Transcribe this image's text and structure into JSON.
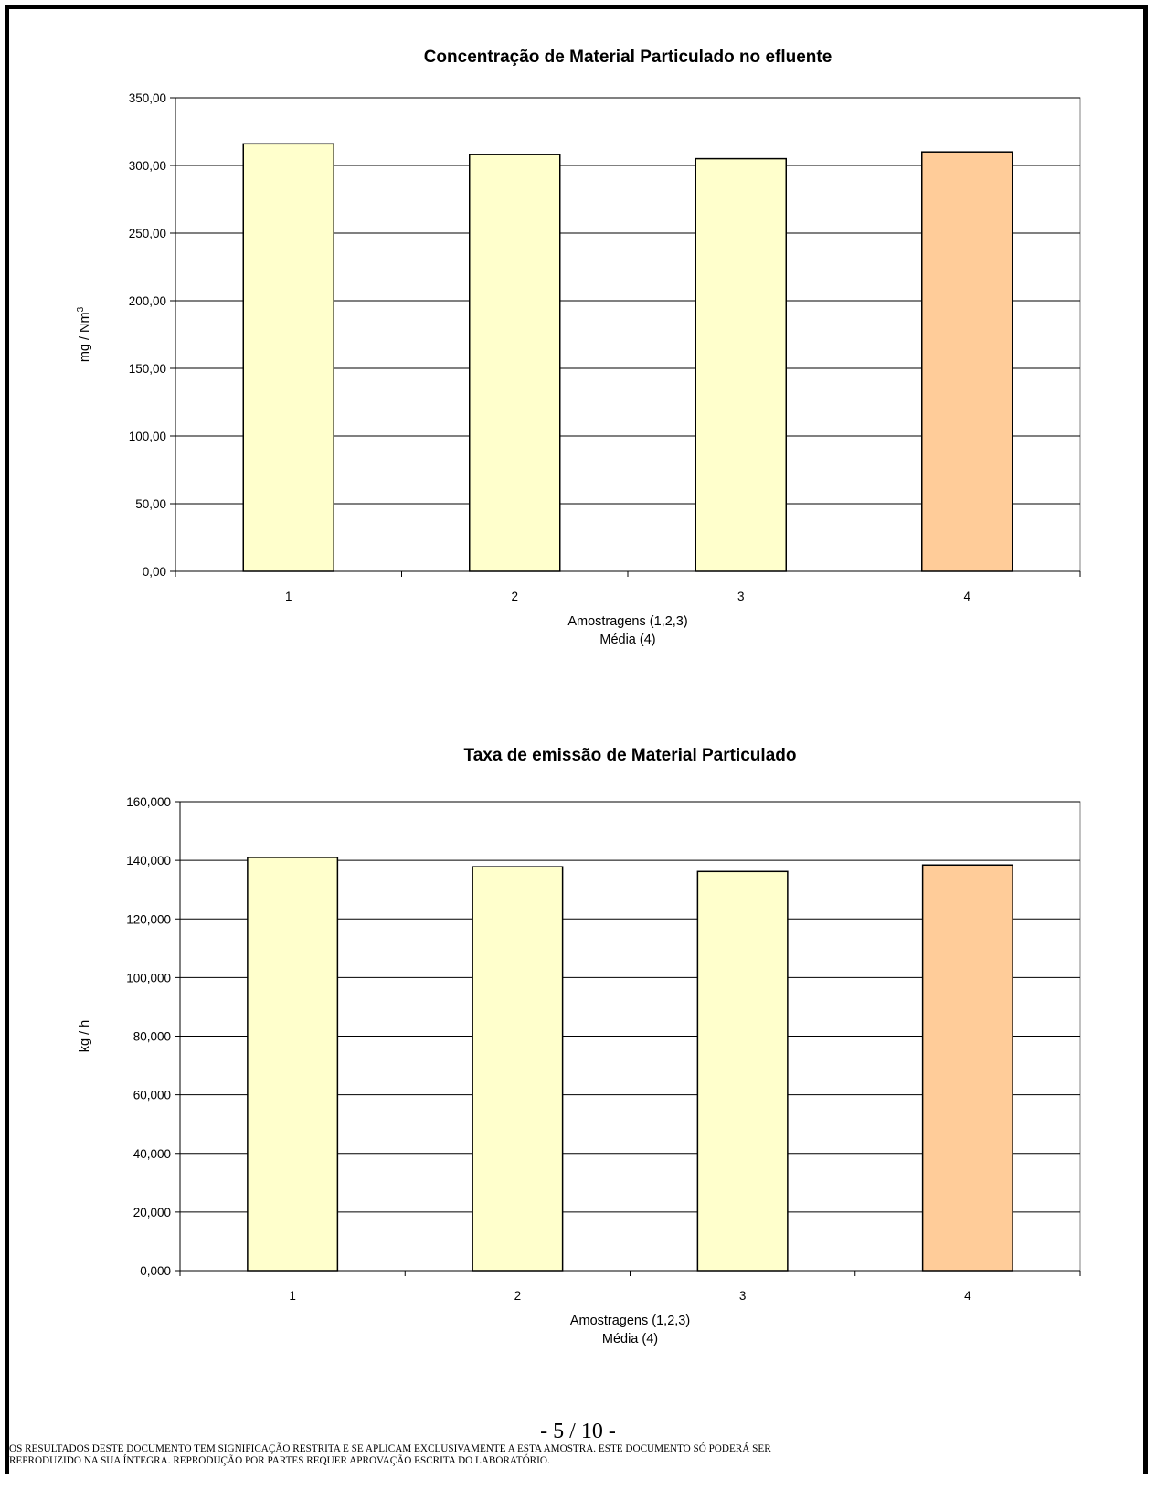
{
  "chart_data": [
    {
      "type": "bar",
      "title": "Concentração de Material Particulado no efluente",
      "categories": [
        "1",
        "2",
        "3",
        "4"
      ],
      "values": [
        316,
        308,
        305,
        310
      ],
      "highlight_index": 3,
      "ylabel": "mg / Nm",
      "ylabel_sup": "3",
      "xlabel": [
        "Amostragens (1,2,3)",
        "Média (4)"
      ],
      "ylim": [
        0,
        350
      ],
      "ytick_step": 50,
      "ytick_labels": [
        "0,00",
        "50,00",
        "100,00",
        "150,00",
        "200,00",
        "250,00",
        "300,00",
        "350,00"
      ],
      "grid": true,
      "legend": "none",
      "colors": {
        "bar": "#FFFFCC",
        "highlight": "#FFCC99",
        "outline": "#000000",
        "grid": "#000000"
      }
    },
    {
      "type": "bar",
      "title": "Taxa de emissão de Material Particulado",
      "categories": [
        "1",
        "2",
        "3",
        "4"
      ],
      "values": [
        141,
        137.8,
        136.2,
        138.4
      ],
      "highlight_index": 3,
      "ylabel": "kg / h",
      "ylabel_sup": "",
      "xlabel": [
        "Amostragens (1,2,3)",
        "Média (4)"
      ],
      "ylim": [
        0,
        160
      ],
      "ytick_step": 20,
      "ytick_labels": [
        "0,000",
        "20,000",
        "40,000",
        "60,000",
        "80,000",
        "100,000",
        "120,000",
        "140,000",
        "160,000"
      ],
      "grid": true,
      "legend": "none",
      "colors": {
        "bar": "#FFFFCC",
        "highlight": "#FFCC99",
        "outline": "#000000",
        "grid": "#000000"
      }
    }
  ],
  "footer": {
    "page_number": "- 5 / 10 -",
    "disclaimer_line1": "OS RESULTADOS DESTE DOCUMENTO TEM SIGNIFICAÇÃO RESTRITA E SE APLICAM EXCLUSIVAMENTE A ESTA AMOSTRA. ESTE DOCUMENTO SÓ PODERÁ SER",
    "disclaimer_line2": "REPRODUZIDO NA SUA ÍNTEGRA. REPRODUÇÃO POR PARTES REQUER APROVAÇÃO ESCRITA DO LABORATÓRIO."
  }
}
